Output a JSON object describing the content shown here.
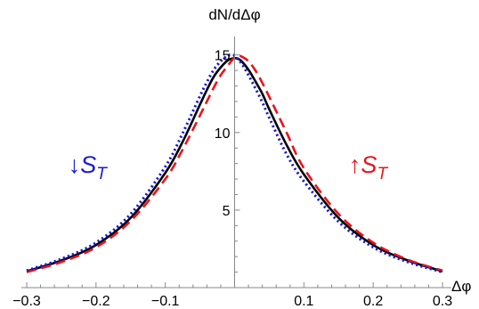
{
  "chart_data": {
    "type": "line",
    "title": "",
    "xlabel": "Δφ",
    "ylabel": "dN/dΔφ",
    "xlim": [
      -0.3,
      0.3
    ],
    "ylim": [
      0,
      15.5
    ],
    "x_ticks": [
      {
        "value": -0.3,
        "label": "−0.3"
      },
      {
        "value": -0.2,
        "label": "−0.2"
      },
      {
        "value": -0.1,
        "label": "−0.1"
      },
      {
        "value": 0.1,
        "label": "0.1"
      },
      {
        "value": 0.2,
        "label": "0.2"
      },
      {
        "value": 0.3,
        "label": "0.3"
      }
    ],
    "y_ticks": [
      {
        "value": 5,
        "label": "5"
      },
      {
        "value": 10,
        "label": "10"
      },
      {
        "value": 15,
        "label": "15"
      }
    ],
    "grid": false,
    "series": [
      {
        "style": "solid",
        "color": "#000000",
        "x": [
          -0.3,
          -0.25,
          -0.2,
          -0.15,
          -0.1,
          -0.075,
          -0.05,
          -0.04,
          -0.03,
          -0.02,
          -0.01,
          -0.005,
          0,
          0.005,
          0.01,
          0.02,
          0.03,
          0.04,
          0.05,
          0.075,
          0.1,
          0.15,
          0.2,
          0.25,
          0.3
        ],
        "y": [
          1.05,
          1.75,
          2.75,
          4.5,
          7.4,
          9.4,
          11.8,
          12.75,
          13.6,
          14.2,
          14.65,
          14.75,
          14.8,
          14.75,
          14.6,
          14.05,
          13.3,
          12.5,
          11.5,
          9.2,
          7.3,
          4.5,
          2.75,
          1.75,
          1.05
        ]
      },
      {
        "style": "dashed",
        "color": "#e8141c",
        "x": [
          -0.3,
          -0.25,
          -0.2,
          -0.15,
          -0.1,
          -0.075,
          -0.05,
          -0.04,
          -0.03,
          -0.02,
          -0.01,
          0,
          0.005,
          0.01,
          0.02,
          0.03,
          0.04,
          0.05,
          0.075,
          0.1,
          0.15,
          0.2,
          0.25,
          0.3
        ],
        "y": [
          1.0,
          1.65,
          2.6,
          4.3,
          7.0,
          8.9,
          11.1,
          12.0,
          12.9,
          13.7,
          14.3,
          14.85,
          14.95,
          14.9,
          14.6,
          14.0,
          13.2,
          12.3,
          10.0,
          7.7,
          4.75,
          2.9,
          1.8,
          1.1
        ]
      },
      {
        "style": "dotted",
        "color": "#1a1ad8",
        "x": [
          -0.3,
          -0.25,
          -0.2,
          -0.15,
          -0.1,
          -0.075,
          -0.05,
          -0.04,
          -0.03,
          -0.02,
          -0.01,
          -0.005,
          0,
          0.01,
          0.02,
          0.03,
          0.04,
          0.05,
          0.075,
          0.1,
          0.15,
          0.2,
          0.25,
          0.3
        ],
        "y": [
          1.1,
          1.85,
          2.9,
          4.75,
          7.8,
          9.95,
          12.35,
          13.25,
          14.05,
          14.6,
          14.95,
          15.0,
          14.95,
          14.45,
          13.7,
          12.85,
          11.95,
          10.95,
          8.6,
          6.85,
          4.25,
          2.6,
          1.65,
          1.0
        ]
      }
    ],
    "annotations": [
      {
        "text": "↓S",
        "subscript": "T",
        "color": "#1a1ad8",
        "x": -0.24,
        "y": 7.4
      },
      {
        "text": "↑S",
        "subscript": "T",
        "color": "#e8141c",
        "x": 0.165,
        "y": 7.4
      }
    ]
  }
}
